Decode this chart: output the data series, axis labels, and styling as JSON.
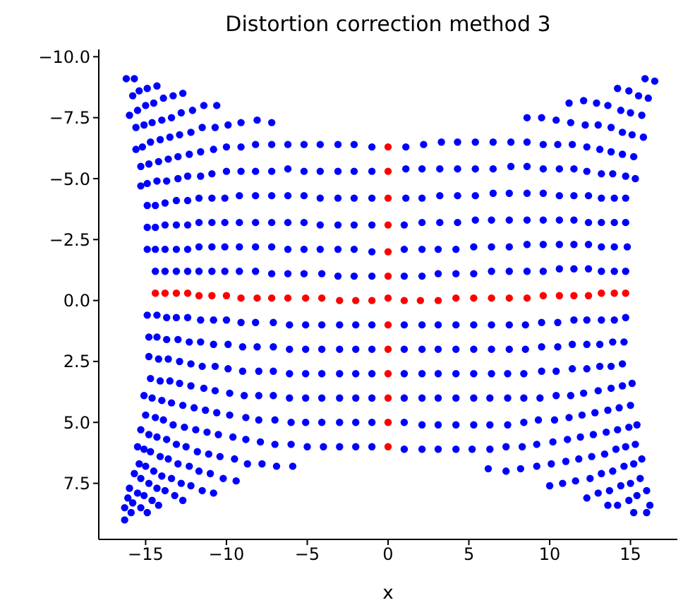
{
  "chart_data": {
    "type": "scatter",
    "title": "Distortion correction method 3",
    "xlabel": "x",
    "xlim": [
      -17.9,
      17.9
    ],
    "xticks": [
      {
        "value": -15,
        "label": "−15"
      },
      {
        "value": -10,
        "label": "−10"
      },
      {
        "value": -5,
        "label": "−5"
      },
      0,
      5,
      10,
      15
    ],
    "ylim": [
      9.8,
      -10.3
    ],
    "yticks": [
      {
        "value": -10,
        "label": "−10.0"
      },
      {
        "value": -7.5,
        "label": "−7.5"
      },
      {
        "value": -5,
        "label": "−5.0"
      },
      {
        "value": -2.5,
        "label": "−2.5"
      },
      {
        "value": 0,
        "label": "0.0"
      },
      {
        "value": 2.5,
        "label": "2.5"
      },
      {
        "value": 5,
        "label": "5.0"
      },
      {
        "value": 7.5,
        "label": "7.5"
      }
    ],
    "marker": "circle",
    "series": [
      {
        "color": "#0000ff",
        "x": [
          -16.2,
          -15.7,
          -15.8,
          -15.4,
          -14.9,
          -14.3,
          -16.0,
          -15.5,
          -15.0,
          -14.5,
          -13.9,
          -13.3,
          -12.7,
          -15.6,
          -15.1,
          -14.6,
          -14.0,
          -13.4,
          -12.8,
          -12.1,
          -11.4,
          -10.6,
          -15.6,
          -15.2,
          -14.7,
          -14.1,
          -13.5,
          -12.9,
          -12.2,
          -11.5,
          -10.7,
          -9.9,
          -9.1,
          -8.1,
          -7.2,
          -15.3,
          -14.8,
          -14.2,
          -13.6,
          -13.0,
          -12.3,
          -11.6,
          -10.8,
          -10.0,
          -9.1,
          -8.2,
          -7.2,
          -6.2,
          -5.2,
          -4.2,
          -3.1,
          -2.1,
          -1.0,
          -15.3,
          -14.9,
          -14.3,
          -13.7,
          -13.0,
          -12.4,
          -11.6,
          -10.9,
          -10.0,
          -9.1,
          -8.2,
          -7.2,
          -6.2,
          -5.2,
          -4.2,
          -3.1,
          -2.1,
          -1.0,
          -14.9,
          -14.4,
          -13.8,
          -13.1,
          -12.4,
          -11.7,
          -10.9,
          -10.1,
          -9.2,
          -8.2,
          -7.2,
          -6.2,
          -5.2,
          -4.2,
          -3.1,
          -2.1,
          -1.0,
          -14.9,
          -14.4,
          -13.8,
          -13.1,
          -12.4,
          -11.7,
          -10.9,
          -10.1,
          -9.2,
          -8.2,
          -7.2,
          -6.2,
          -5.2,
          -4.2,
          -3.1,
          -2.1,
          -1.0,
          -14.9,
          -14.4,
          -13.8,
          -13.1,
          -12.4,
          -11.7,
          -10.9,
          -10.1,
          -9.2,
          -8.2,
          -7.2,
          -6.2,
          -5.2,
          -4.2,
          -3.1,
          -2.1,
          -1.0,
          -14.4,
          -13.8,
          -13.1,
          -12.4,
          -11.7,
          -10.9,
          -10.1,
          -9.2,
          -8.2,
          -7.2,
          -6.2,
          -5.2,
          -4.1,
          -3.1,
          -2.1,
          -1.0,
          15.9,
          16.5,
          14.2,
          14.9,
          15.5,
          16.1,
          11.2,
          12.1,
          12.9,
          13.6,
          14.4,
          15.0,
          15.7,
          8.6,
          9.5,
          10.4,
          11.3,
          12.2,
          13.0,
          13.8,
          14.5,
          15.1,
          15.8,
          1.1,
          2.2,
          3.3,
          4.3,
          5.4,
          6.5,
          7.6,
          8.6,
          9.6,
          10.5,
          11.4,
          12.3,
          13.1,
          13.8,
          14.5,
          15.2,
          1.1,
          2.1,
          3.2,
          4.3,
          5.4,
          6.5,
          7.6,
          8.6,
          9.6,
          10.6,
          11.5,
          12.3,
          13.2,
          13.9,
          14.7,
          15.3,
          1.1,
          2.1,
          3.2,
          4.3,
          5.4,
          6.5,
          7.5,
          8.6,
          9.6,
          10.6,
          11.5,
          12.4,
          13.2,
          14.0,
          14.7,
          1.0,
          2.1,
          3.2,
          4.3,
          5.4,
          6.4,
          7.5,
          8.6,
          9.6,
          10.6,
          11.5,
          12.4,
          13.2,
          14.0,
          14.7,
          1.0,
          2.1,
          3.1,
          4.2,
          5.3,
          6.4,
          7.5,
          8.6,
          9.6,
          10.6,
          11.5,
          12.4,
          13.2,
          14.0,
          14.8,
          1.0,
          2.1,
          3.1,
          4.2,
          5.3,
          6.4,
          7.5,
          8.6,
          9.6,
          10.6,
          11.5,
          12.4,
          13.2,
          14.0,
          14.7,
          -14.9,
          -14.3,
          -13.7,
          -13.1,
          -12.4,
          -11.6,
          -10.8,
          -10.0,
          -9.1,
          -8.2,
          -7.1,
          -6.1,
          -5.1,
          -4.1,
          -3.0,
          -2.0,
          -1.0,
          -14.8,
          -14.3,
          -13.7,
          -13.0,
          -12.3,
          -11.6,
          -10.8,
          -9.9,
          -9.0,
          -8.1,
          -7.1,
          -6.1,
          -5.1,
          -4.1,
          -3.0,
          -2.0,
          -1.0,
          -14.8,
          -14.2,
          -13.6,
          -12.9,
          -12.2,
          -11.5,
          -10.7,
          -9.9,
          -9.0,
          -8.0,
          -7.1,
          -6.1,
          -5.1,
          -4.1,
          -3.0,
          -2.0,
          -1.0,
          -14.7,
          -14.1,
          -13.5,
          -12.9,
          -12.2,
          -11.4,
          -10.7,
          -9.8,
          -8.9,
          -8.0,
          -7.1,
          -6.1,
          -5.1,
          -4.1,
          -3.0,
          -2.0,
          -1.0,
          -15.1,
          -14.6,
          -14.0,
          -13.4,
          -12.7,
          -12.0,
          -11.3,
          -10.6,
          -9.8,
          -8.8,
          -8.0,
          -7.0,
          -6.0,
          -5.1,
          -4.1,
          -3.0,
          -2.0,
          -1.0,
          -15.0,
          -14.4,
          -13.9,
          -13.3,
          -12.6,
          -11.9,
          -11.2,
          -10.5,
          -9.6,
          -8.8,
          -7.9,
          -7.0,
          -6.0,
          -5.0,
          -4.0,
          -3.0,
          -2.0,
          -1.0,
          -15.3,
          -14.8,
          -14.3,
          -13.7,
          -13.1,
          -12.5,
          -11.8,
          -11.1,
          -10.4,
          -9.5,
          -8.7,
          -7.8,
          -6.9,
          -5.9,
          -15.5,
          -15.1,
          -14.7,
          -14.1,
          -13.6,
          -13.0,
          -12.3,
          -11.7,
          -11.0,
          -10.2,
          -9.4,
          -15.4,
          -15.0,
          -14.5,
          -14.0,
          -13.4,
          -12.8,
          -12.2,
          -11.5,
          -10.8,
          -15.7,
          -15.3,
          -14.8,
          -14.3,
          -13.8,
          -13.2,
          -12.7,
          -16.0,
          -15.5,
          -15.1,
          -14.6,
          -14.2,
          -16.1,
          -15.8,
          -15.3,
          -14.9,
          -16.3,
          -15.9,
          -16.3,
          1.0,
          2.1,
          3.1,
          4.2,
          5.3,
          6.4,
          7.5,
          8.5,
          9.5,
          10.5,
          11.5,
          12.3,
          13.2,
          14.0,
          14.7,
          1.0,
          2.1,
          3.1,
          4.2,
          5.3,
          6.4,
          7.5,
          8.5,
          9.5,
          10.5,
          11.4,
          12.3,
          13.1,
          13.9,
          14.6,
          1.0,
          2.1,
          3.1,
          4.2,
          5.3,
          6.4,
          7.4,
          8.4,
          9.5,
          10.4,
          11.4,
          12.3,
          13.1,
          13.8,
          14.5,
          1.0,
          2.1,
          3.1,
          4.2,
          5.3,
          6.3,
          7.4,
          8.4,
          9.4,
          10.4,
          11.3,
          12.1,
          13.0,
          13.8,
          14.5,
          15.1,
          1.0,
          2.1,
          3.1,
          4.2,
          5.3,
          6.3,
          7.4,
          8.4,
          9.3,
          10.3,
          11.2,
          12.0,
          12.8,
          13.6,
          14.3,
          15.0,
          1.0,
          2.1,
          3.1,
          4.2,
          5.2,
          6.3,
          7.3,
          8.3,
          9.2,
          10.2,
          11.1,
          11.9,
          12.7,
          13.5,
          14.2,
          14.9,
          15.4,
          6.2,
          7.3,
          8.2,
          9.2,
          10.1,
          11.0,
          11.8,
          12.6,
          13.4,
          14.1,
          14.7,
          15.3,
          10.0,
          10.8,
          11.6,
          12.5,
          13.2,
          13.9,
          14.6,
          15.2,
          15.7,
          12.3,
          13.0,
          13.7,
          14.4,
          15.0,
          15.6,
          13.6,
          14.2,
          14.9,
          15.4,
          16.0,
          15.2,
          16.0,
          16.2
        ],
        "values": [
          -9.1,
          -9.1,
          -8.4,
          -8.6,
          -8.7,
          -8.8,
          -7.6,
          -7.8,
          -8.0,
          -8.1,
          -8.3,
          -8.4,
          -8.5,
          -7.1,
          -7.2,
          -7.3,
          -7.4,
          -7.5,
          -7.7,
          -7.8,
          -8.0,
          -8.0,
          -6.2,
          -6.3,
          -6.5,
          -6.6,
          -6.7,
          -6.8,
          -6.9,
          -7.1,
          -7.1,
          -7.2,
          -7.3,
          -7.4,
          -7.3,
          -5.5,
          -5.6,
          -5.7,
          -5.8,
          -5.9,
          -6.0,
          -6.1,
          -6.2,
          -6.3,
          -6.3,
          -6.4,
          -6.4,
          -6.4,
          -6.4,
          -6.4,
          -6.4,
          -6.4,
          -6.3,
          -4.7,
          -4.8,
          -4.9,
          -4.9,
          -5.0,
          -5.1,
          -5.1,
          -5.2,
          -5.3,
          -5.3,
          -5.3,
          -5.3,
          -5.4,
          -5.3,
          -5.3,
          -5.3,
          -5.3,
          -5.3,
          -3.9,
          -3.9,
          -4.0,
          -4.1,
          -4.1,
          -4.2,
          -4.2,
          -4.2,
          -4.3,
          -4.3,
          -4.3,
          -4.3,
          -4.3,
          -4.2,
          -4.2,
          -4.2,
          -4.2,
          -3.0,
          -3.0,
          -3.1,
          -3.1,
          -3.1,
          -3.2,
          -3.2,
          -3.2,
          -3.2,
          -3.2,
          -3.2,
          -3.2,
          -3.2,
          -3.1,
          -3.1,
          -3.1,
          -3.1,
          -2.1,
          -2.1,
          -2.1,
          -2.1,
          -2.1,
          -2.2,
          -2.2,
          -2.2,
          -2.2,
          -2.2,
          -2.2,
          -2.1,
          -2.1,
          -2.1,
          -2.1,
          -2.1,
          -2.0,
          -1.2,
          -1.2,
          -1.2,
          -1.2,
          -1.2,
          -1.2,
          -1.2,
          -1.2,
          -1.2,
          -1.1,
          -1.1,
          -1.1,
          -1.1,
          -1.0,
          -1.0,
          -1.0,
          -9.1,
          -9.0,
          -8.7,
          -8.6,
          -8.4,
          -8.3,
          -8.1,
          -8.2,
          -8.1,
          -8.0,
          -7.8,
          -7.7,
          -7.6,
          -7.5,
          -7.5,
          -7.4,
          -7.3,
          -7.2,
          -7.2,
          -7.1,
          -6.9,
          -6.8,
          -6.7,
          -6.3,
          -6.4,
          -6.5,
          -6.5,
          -6.5,
          -6.5,
          -6.5,
          -6.5,
          -6.4,
          -6.4,
          -6.4,
          -6.3,
          -6.2,
          -6.1,
          -6.0,
          -5.9,
          -5.4,
          -5.4,
          -5.4,
          -5.4,
          -5.4,
          -5.4,
          -5.5,
          -5.5,
          -5.4,
          -5.4,
          -5.4,
          -5.3,
          -5.2,
          -5.2,
          -5.1,
          -5.0,
          -4.2,
          -4.2,
          -4.3,
          -4.3,
          -4.3,
          -4.4,
          -4.4,
          -4.4,
          -4.4,
          -4.3,
          -4.3,
          -4.3,
          -4.2,
          -4.2,
          -4.2,
          -3.1,
          -3.2,
          -3.2,
          -3.2,
          -3.3,
          -3.3,
          -3.3,
          -3.3,
          -3.3,
          -3.3,
          -3.3,
          -3.2,
          -3.2,
          -3.2,
          -3.2,
          -2.1,
          -2.1,
          -2.1,
          -2.1,
          -2.2,
          -2.2,
          -2.2,
          -2.3,
          -2.3,
          -2.3,
          -2.3,
          -2.3,
          -2.2,
          -2.2,
          -2.2,
          -1.0,
          -1.0,
          -1.1,
          -1.1,
          -1.1,
          -1.2,
          -1.2,
          -1.2,
          -1.2,
          -1.3,
          -1.3,
          -1.3,
          -1.2,
          -1.2,
          -1.2,
          0.6,
          0.6,
          0.7,
          0.7,
          0.7,
          0.8,
          0.8,
          0.8,
          0.9,
          0.9,
          0.9,
          1.0,
          1.0,
          1.0,
          1.0,
          1.0,
          1.0,
          1.5,
          1.5,
          1.6,
          1.6,
          1.7,
          1.7,
          1.8,
          1.8,
          1.9,
          1.9,
          1.9,
          2.0,
          2.0,
          2.0,
          2.0,
          2.0,
          2.0,
          2.3,
          2.4,
          2.4,
          2.5,
          2.6,
          2.7,
          2.7,
          2.8,
          2.9,
          2.9,
          2.9,
          3.0,
          3.0,
          3.0,
          3.0,
          3.0,
          3.0,
          3.2,
          3.3,
          3.3,
          3.4,
          3.5,
          3.6,
          3.7,
          3.8,
          3.9,
          3.9,
          3.9,
          4.0,
          4.0,
          4.0,
          4.0,
          4.0,
          4.0,
          3.9,
          4.0,
          4.1,
          4.2,
          4.3,
          4.4,
          4.5,
          4.6,
          4.7,
          4.8,
          4.9,
          4.9,
          5.0,
          5.0,
          5.0,
          5.0,
          5.0,
          5.0,
          4.7,
          4.8,
          4.9,
          5.1,
          5.2,
          5.3,
          5.4,
          5.5,
          5.6,
          5.7,
          5.8,
          5.9,
          5.9,
          6.0,
          6.0,
          6.0,
          6.0,
          6.0,
          5.3,
          5.5,
          5.6,
          5.7,
          5.9,
          6.0,
          6.2,
          6.3,
          6.4,
          6.5,
          6.7,
          6.7,
          6.8,
          6.8,
          6.0,
          6.1,
          6.2,
          6.4,
          6.5,
          6.7,
          6.8,
          7.0,
          7.1,
          7.3,
          7.4,
          6.7,
          6.8,
          7.0,
          7.2,
          7.3,
          7.5,
          7.6,
          7.8,
          7.9,
          7.1,
          7.3,
          7.5,
          7.7,
          7.8,
          8.0,
          8.2,
          7.7,
          7.9,
          8.0,
          8.2,
          8.4,
          8.1,
          8.3,
          8.5,
          8.7,
          8.5,
          8.7,
          9.0,
          1.0,
          1.0,
          1.0,
          1.0,
          1.0,
          1.0,
          1.0,
          1.0,
          0.9,
          0.9,
          0.8,
          0.8,
          0.8,
          0.8,
          0.7,
          2.0,
          2.0,
          2.0,
          2.0,
          2.0,
          2.0,
          2.0,
          2.0,
          1.9,
          1.9,
          1.8,
          1.8,
          1.8,
          1.7,
          1.7,
          3.0,
          3.0,
          3.0,
          3.0,
          3.0,
          3.0,
          3.0,
          3.0,
          2.9,
          2.9,
          2.8,
          2.8,
          2.7,
          2.7,
          2.6,
          4.0,
          4.0,
          4.0,
          4.0,
          4.0,
          4.0,
          4.0,
          4.0,
          4.0,
          3.9,
          3.9,
          3.8,
          3.7,
          3.6,
          3.5,
          3.4,
          5.0,
          5.1,
          5.1,
          5.1,
          5.1,
          5.1,
          5.1,
          5.0,
          4.9,
          4.9,
          4.8,
          4.7,
          4.6,
          4.5,
          4.4,
          4.3,
          6.1,
          6.1,
          6.1,
          6.1,
          6.1,
          6.1,
          6.0,
          6.0,
          5.9,
          5.8,
          5.7,
          5.6,
          5.5,
          5.4,
          5.3,
          5.2,
          5.1,
          6.9,
          7.0,
          6.9,
          6.8,
          6.7,
          6.6,
          6.5,
          6.4,
          6.3,
          6.1,
          6.0,
          5.9,
          7.6,
          7.5,
          7.4,
          7.3,
          7.1,
          7.0,
          6.8,
          6.7,
          6.5,
          8.1,
          7.9,
          7.8,
          7.6,
          7.5,
          7.3,
          8.4,
          8.4,
          8.2,
          8.0,
          7.8,
          8.7,
          8.7,
          8.4
        ]
      },
      {
        "color": "#ff0000",
        "x": [
          -14.4,
          -13.8,
          -13.1,
          -12.4,
          -11.7,
          -10.9,
          -10.0,
          -9.1,
          -8.1,
          -7.2,
          -6.2,
          -5.1,
          -4.1,
          -3.0,
          -2.0,
          -1.0,
          0,
          1.0,
          2.0,
          3.1,
          4.2,
          5.3,
          6.4,
          7.5,
          8.6,
          9.6,
          10.6,
          11.5,
          12.4,
          13.2,
          14.0,
          14.7,
          0,
          0,
          0,
          0,
          0,
          0,
          0,
          0,
          0,
          0,
          0,
          0
        ],
        "values": [
          -0.3,
          -0.3,
          -0.3,
          -0.3,
          -0.2,
          -0.2,
          -0.2,
          -0.1,
          -0.1,
          -0.1,
          -0.1,
          -0.1,
          -0.1,
          0.0,
          0.0,
          0.0,
          -0.1,
          0.0,
          0.0,
          0.0,
          -0.1,
          -0.1,
          -0.1,
          -0.1,
          -0.1,
          -0.2,
          -0.2,
          -0.2,
          -0.2,
          -0.3,
          -0.3,
          -0.3,
          -6.3,
          -5.3,
          -4.2,
          -3.1,
          -2.0,
          -1.0,
          1.0,
          2.0,
          3.0,
          4.0,
          5.0,
          6.0
        ]
      }
    ]
  }
}
